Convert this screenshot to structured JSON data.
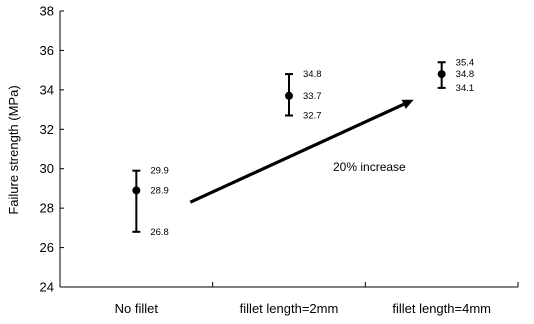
{
  "chart_data": {
    "type": "scatter",
    "ylabel": "Failure strength (MPa)",
    "xlabel": "",
    "title": "",
    "ylim": [
      24,
      38
    ],
    "yticks": [
      24,
      26,
      28,
      30,
      32,
      34,
      36,
      38
    ],
    "categories": [
      "No fillet",
      "fillet length=2mm",
      "fillet length=4mm"
    ],
    "points": [
      {
        "category": "No fillet",
        "mean": 28.9,
        "max": 29.9,
        "min": 26.8,
        "labels": {
          "max": "29.9",
          "mean": "28.9",
          "min": "26.8"
        }
      },
      {
        "category": "fillet length=2mm",
        "mean": 33.7,
        "max": 34.8,
        "min": 32.7,
        "labels": {
          "max": "34.8",
          "mean": "33.7",
          "min": "32.7"
        }
      },
      {
        "category": "fillet length=4mm",
        "mean": 34.8,
        "max": 35.4,
        "min": 34.1,
        "labels": {
          "max": "35.4",
          "mean": "34.8",
          "min": "34.1"
        }
      }
    ],
    "annotation": {
      "text": "20% increase",
      "arrow_from": {
        "category": "No fillet",
        "y": 28.3
      },
      "arrow_to": {
        "category": "fillet length=4mm",
        "y": 33.5
      }
    },
    "grid": false,
    "legend": "none",
    "colors": {
      "marker": "#000000",
      "axis": "#000000"
    }
  }
}
